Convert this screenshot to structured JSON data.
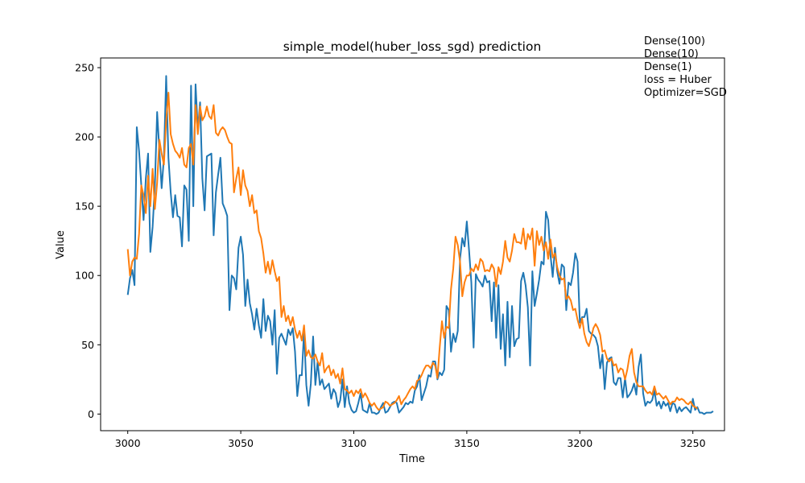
{
  "chart_data": {
    "type": "line",
    "title": "simple_model(huber_loss_sgd) prediction",
    "xlabel": "Time",
    "ylabel": "Value",
    "xlim": [
      2988,
      3264
    ],
    "ylim": [
      -12,
      257
    ],
    "xticks": [
      3000,
      3050,
      3100,
      3150,
      3200,
      3250
    ],
    "yticks": [
      0,
      50,
      100,
      150,
      200,
      250
    ],
    "grid": false,
    "annotation_lines": [
      "Dense(100)",
      "Dense(10)",
      "Dense(1)",
      "loss = Huber",
      "Optimizer=SGD"
    ],
    "series": [
      {
        "color": "#1f77b4",
        "x_start": 3000,
        "values": [
          86,
          98,
          104,
          93,
          207,
          190,
          165,
          140,
          170,
          188,
          117,
          135,
          165,
          218,
          190,
          163,
          185,
          244,
          185,
          160,
          142,
          158,
          143,
          142,
          121,
          165,
          162,
          125,
          237,
          150,
          238,
          205,
          225,
          170,
          147,
          186,
          187,
          188,
          129,
          160,
          173,
          185,
          152,
          148,
          143,
          75,
          100,
          98,
          90,
          120,
          128,
          115,
          78,
          97,
          80,
          72,
          61,
          76,
          64,
          55,
          83,
          60,
          71,
          67,
          50,
          75,
          29,
          55,
          58,
          54,
          50,
          61,
          57,
          62,
          45,
          13,
          28,
          28,
          60,
          21,
          6,
          22,
          56,
          21,
          38,
          21,
          25,
          18,
          20,
          22,
          11,
          18,
          15,
          5,
          10,
          25,
          5,
          20,
          8,
          3,
          1,
          2,
          8,
          15,
          3,
          2,
          1,
          8,
          1,
          1,
          0,
          1,
          5,
          8,
          1,
          2,
          5,
          8,
          9,
          8,
          1,
          3,
          5,
          8,
          7,
          9,
          8,
          17,
          20,
          28,
          10,
          15,
          20,
          28,
          27,
          38,
          38,
          25,
          30,
          28,
          32,
          78,
          75,
          45,
          58,
          52,
          60,
          112,
          127,
          121,
          139,
          118,
          95,
          48,
          101,
          97,
          95,
          92,
          100,
          95,
          96,
          67,
          95,
          55,
          93,
          47,
          72,
          35,
          81,
          41,
          78,
          49,
          54,
          55,
          96,
          102,
          93,
          77,
          35,
          103,
          78,
          87,
          97,
          110,
          108,
          146,
          140,
          115,
          99,
          120,
          103,
          94,
          108,
          106,
          75,
          95,
          93,
          102,
          116,
          110,
          66,
          70,
          70,
          76,
          60,
          58,
          57,
          55,
          49,
          33,
          43,
          18,
          37,
          40,
          41,
          23,
          21,
          26,
          26,
          12,
          26,
          12,
          14,
          17,
          22,
          14,
          34,
          43,
          15,
          6,
          9,
          8,
          10,
          17,
          6,
          9,
          4,
          9,
          6,
          8,
          2,
          8,
          7,
          1,
          5,
          2,
          4,
          5,
          3,
          1,
          11,
          3,
          5,
          1,
          1,
          0,
          1,
          1,
          1,
          2
        ]
      },
      {
        "color": "#ff7f0e",
        "x_start": 3000,
        "values": [
          119,
          100,
          110,
          113,
          112,
          130,
          165,
          158,
          145,
          172,
          150,
          177,
          148,
          167,
          198,
          188,
          180,
          212,
          232,
          202,
          195,
          190,
          188,
          185,
          192,
          180,
          178,
          192,
          195,
          180,
          223,
          202,
          222,
          212,
          215,
          222,
          215,
          213,
          223,
          203,
          201,
          205,
          207,
          205,
          200,
          196,
          195,
          160,
          170,
          178,
          158,
          176,
          165,
          161,
          150,
          158,
          145,
          147,
          132,
          127,
          116,
          102,
          110,
          101,
          111,
          103,
          96,
          99,
          70,
          78,
          67,
          71,
          64,
          70,
          61,
          55,
          60,
          53,
          64,
          42,
          46,
          41,
          40,
          43,
          38,
          35,
          44,
          30,
          33,
          35,
          28,
          32,
          26,
          29,
          22,
          33,
          18,
          17,
          15,
          17,
          13,
          17,
          15,
          18,
          12,
          15,
          12,
          8,
          6,
          8,
          5,
          3,
          4,
          5,
          9,
          8,
          6,
          7,
          8,
          10,
          13,
          7,
          10,
          12,
          15,
          18,
          20,
          18,
          24,
          25,
          28,
          32,
          35,
          35,
          33,
          37,
          35,
          26,
          48,
          67,
          55,
          63,
          62,
          90,
          105,
          128,
          122,
          110,
          85,
          95,
          100,
          100,
          105,
          103,
          108,
          104,
          112,
          110,
          103,
          104,
          103,
          108,
          105,
          92,
          106,
          101,
          110,
          125,
          113,
          110,
          118,
          130,
          124,
          124,
          123,
          134,
          119,
          130,
          126,
          134,
          107,
          132,
          122,
          128,
          118,
          124,
          112,
          126,
          113,
          116,
          106,
          100,
          97,
          98,
          83,
          85,
          82,
          75,
          76,
          68,
          62,
          69,
          58,
          52,
          49,
          55,
          62,
          65,
          62,
          57,
          45,
          46,
          40,
          38,
          40,
          35,
          36,
          30,
          33,
          32,
          25,
          32,
          42,
          47,
          30,
          23,
          20,
          20,
          20,
          17,
          15,
          16,
          14,
          20,
          14,
          15,
          13,
          11,
          13,
          10,
          7,
          9,
          9,
          12,
          10,
          11,
          10,
          8,
          7,
          9,
          6,
          5,
          4
        ]
      }
    ]
  }
}
